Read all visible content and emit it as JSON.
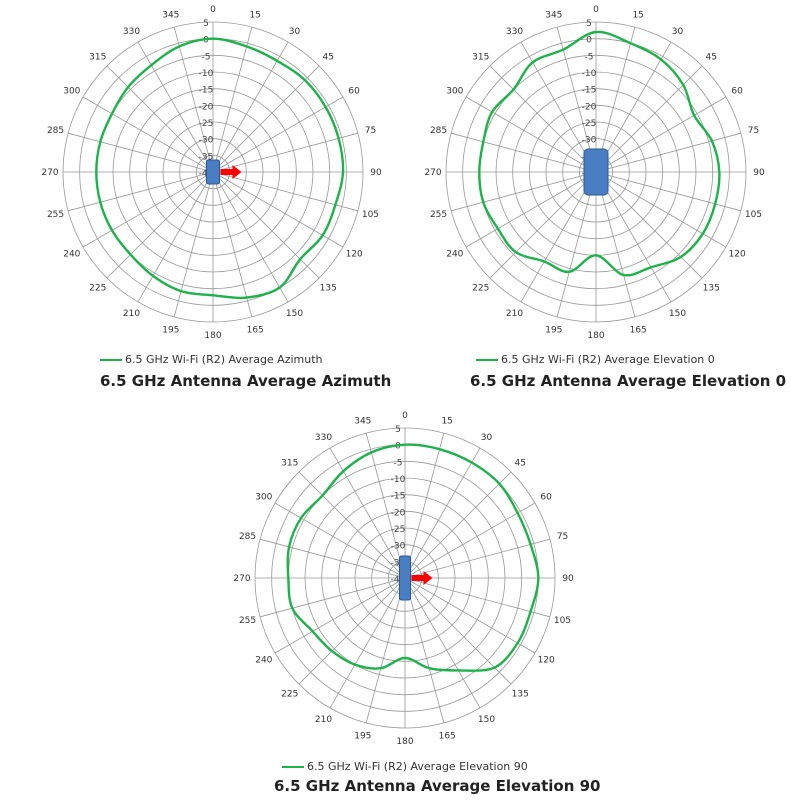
{
  "colors": {
    "trace": "#1db34a",
    "grid": "#999999",
    "antenna_fill": "#4a7ec2",
    "antenna_stroke": "#2a5a9a",
    "arrow": "#ff0000"
  },
  "chart_data": [
    {
      "type": "polar",
      "title": "6.5 GHz Antenna Average Azimuth",
      "series": [
        {
          "name": "6.5 GHz Wi-Fi (R2) Average Azimuth",
          "angles": [
            0,
            15,
            30,
            45,
            60,
            75,
            90,
            105,
            120,
            135,
            150,
            165,
            180,
            195,
            210,
            225,
            240,
            255,
            270,
            285,
            300,
            315,
            330,
            345
          ],
          "values": [
            0,
            -1,
            -1.5,
            -1,
            -1,
            -1,
            -1,
            -2,
            -2,
            -3,
            0,
            -1,
            -3,
            -3,
            -4,
            -5,
            -5,
            -5,
            -5,
            -5,
            -5,
            -4,
            -3,
            -1
          ]
        }
      ],
      "radial_ticks": [
        "5",
        "0",
        "-5",
        "-10",
        "-15",
        "-20",
        "-25",
        "-30",
        "-35",
        "-40"
      ],
      "angle_ticks": [
        "0",
        "15",
        "30",
        "45",
        "60",
        "75",
        "90",
        "105",
        "120",
        "135",
        "150",
        "165",
        "180",
        "195",
        "210",
        "225",
        "240",
        "255",
        "270",
        "285",
        "300",
        "315",
        "330",
        "345"
      ],
      "rlim": [
        -40,
        5
      ],
      "antenna": "horizontal-arrow",
      "legend": "bottom"
    },
    {
      "type": "polar",
      "title": "6.5 GHz Antenna Average Elevation 0",
      "series": [
        {
          "name": "6.5 GHz Wi-Fi (R2) Average Elevation 0",
          "angles": [
            0,
            15,
            30,
            45,
            60,
            75,
            90,
            105,
            120,
            135,
            150,
            165,
            180,
            195,
            210,
            225,
            240,
            255,
            270,
            285,
            300,
            315,
            330,
            345
          ],
          "values": [
            2,
            0,
            -1,
            -3,
            -6,
            -4,
            -3,
            -3,
            -3,
            -4,
            -7,
            -8,
            -15,
            -9,
            -9,
            -6,
            -6,
            -5,
            -5,
            -5,
            -4,
            -5,
            -2,
            -2
          ]
        }
      ],
      "radial_ticks": [
        "5",
        "0",
        "-5",
        "-10",
        "-15",
        "-20",
        "-25",
        "-30",
        "-35",
        "-40"
      ],
      "angle_ticks": [
        "0",
        "15",
        "30",
        "45",
        "60",
        "75",
        "90",
        "105",
        "120",
        "135",
        "150",
        "165",
        "180",
        "195",
        "210",
        "225",
        "240",
        "255",
        "270",
        "285",
        "300",
        "315",
        "330",
        "345"
      ],
      "rlim": [
        -40,
        5
      ],
      "antenna": "box",
      "legend": "bottom"
    },
    {
      "type": "polar",
      "title": "6.5 GHz Antenna Average Elevation 90",
      "series": [
        {
          "name": "6.5 GHz Wi-Fi (R2) Average Elevation 90",
          "angles": [
            0,
            15,
            30,
            45,
            60,
            75,
            90,
            105,
            120,
            135,
            150,
            165,
            180,
            195,
            210,
            225,
            240,
            255,
            270,
            285,
            300,
            315,
            330,
            345
          ],
          "values": [
            0,
            0,
            0,
            0,
            -1,
            -1,
            0,
            -1,
            -1,
            -2,
            -8,
            -12,
            -16,
            -12,
            -10,
            -9,
            -8,
            -5,
            -5,
            -4,
            -4,
            -5,
            -3,
            -1
          ]
        }
      ],
      "radial_ticks": [
        "5",
        "0",
        "-5",
        "-10",
        "-15",
        "-20",
        "-25",
        "-30",
        "-35",
        "-40"
      ],
      "angle_ticks": [
        "0",
        "15",
        "30",
        "45",
        "60",
        "75",
        "90",
        "105",
        "120",
        "135",
        "150",
        "165",
        "180",
        "195",
        "210",
        "225",
        "240",
        "255",
        "270",
        "285",
        "300",
        "315",
        "330",
        "345"
      ],
      "rlim": [
        -40,
        5
      ],
      "antenna": "vertical-arrow",
      "legend": "bottom"
    }
  ]
}
